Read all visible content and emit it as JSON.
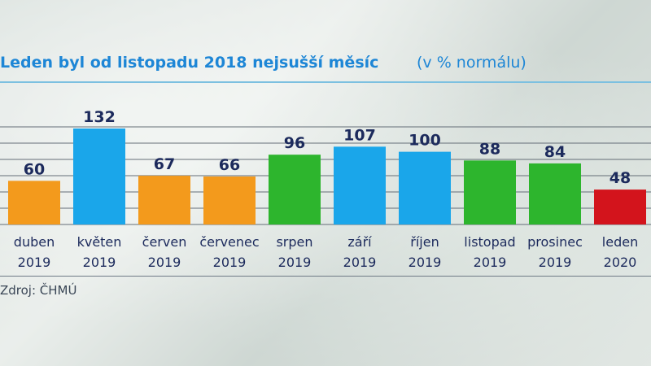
{
  "chart_data": {
    "type": "bar",
    "title": "Leden byl od listopadu 2018 nejsušší měsíc",
    "subtitle": "(v % normálu)",
    "categories": [
      [
        "duben",
        "2019"
      ],
      [
        "květen",
        "2019"
      ],
      [
        "červen",
        "2019"
      ],
      [
        "červenec",
        "2019"
      ],
      [
        "srpen",
        "2019"
      ],
      [
        "září",
        "2019"
      ],
      [
        "říjen",
        "2019"
      ],
      [
        "listopad",
        "2019"
      ],
      [
        "prosinec",
        "2019"
      ],
      [
        "leden",
        "2020"
      ]
    ],
    "values": [
      60,
      132,
      67,
      66,
      96,
      107,
      100,
      88,
      84,
      48
    ],
    "bar_colors": [
      "#f39a1c",
      "#1aa6ea",
      "#f39a1c",
      "#f39a1c",
      "#2db52d",
      "#1aa6ea",
      "#1aa6ea",
      "#2db52d",
      "#2db52d",
      "#d3141c"
    ],
    "label_color": "#1c2a5c",
    "grid": true,
    "ylim": [
      0,
      132
    ]
  },
  "source": "Zdroj: ČHMÚ"
}
